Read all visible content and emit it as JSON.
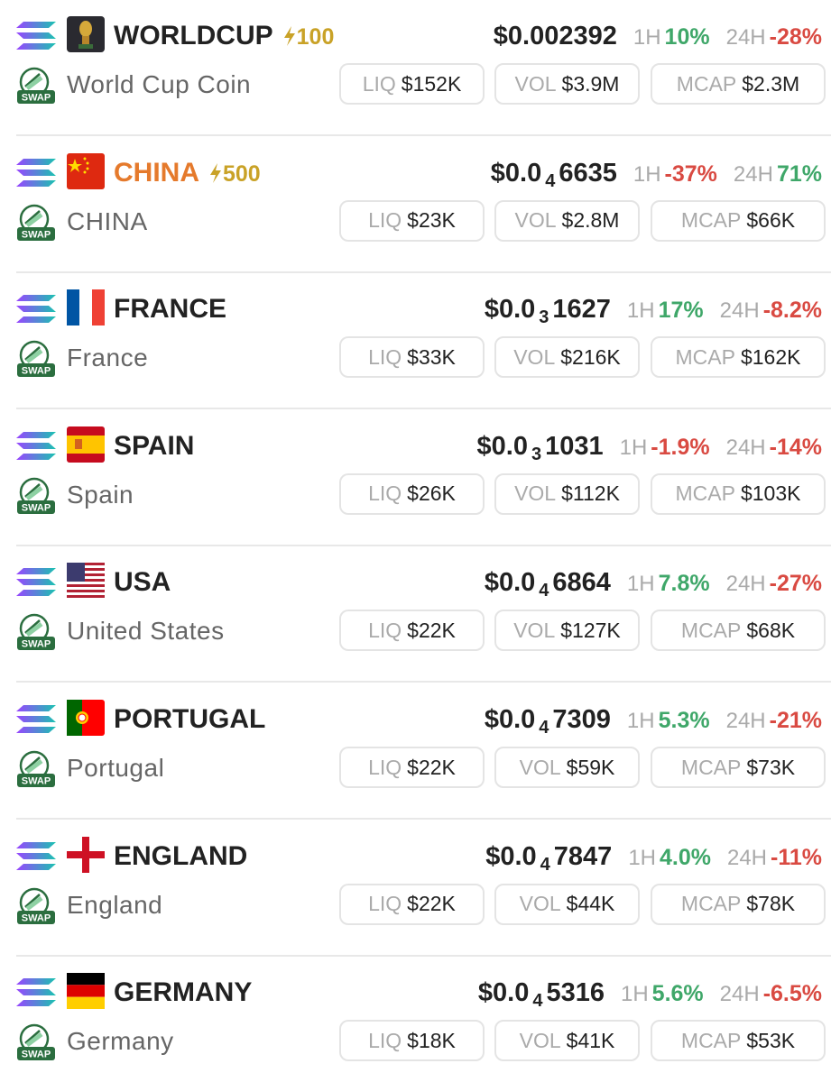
{
  "labels": {
    "h1": "1H",
    "h24": "24H",
    "liq": "LIQ",
    "vol": "VOL",
    "mcap": "MCAP",
    "swap": "SWAP"
  },
  "rows": [
    {
      "symbol": "WORLDCUP",
      "boost": "100",
      "name": "World Cup Coin",
      "price": {
        "main": "$0.002392"
      },
      "change_1h": "10%",
      "change_24h": "-28%",
      "liq": "$152K",
      "vol": "$3.9M",
      "mcap": "$2.3M"
    },
    {
      "symbol": "CHINA",
      "symbol_color": "#e57a2c",
      "boost": "500",
      "name": "CHINA",
      "price": {
        "main": "$0.0",
        "sub": "4",
        "tail": "6635"
      },
      "change_1h": "-37%",
      "change_24h": "71%",
      "liq": "$23K",
      "vol": "$2.8M",
      "mcap": "$66K"
    },
    {
      "symbol": "FRANCE",
      "name": "France",
      "price": {
        "main": "$0.0",
        "sub": "3",
        "tail": "1627"
      },
      "change_1h": "17%",
      "change_24h": "-8.2%",
      "liq": "$33K",
      "vol": "$216K",
      "mcap": "$162K"
    },
    {
      "symbol": "SPAIN",
      "name": "Spain",
      "price": {
        "main": "$0.0",
        "sub": "3",
        "tail": "1031"
      },
      "change_1h": "-1.9%",
      "change_24h": "-14%",
      "liq": "$26K",
      "vol": "$112K",
      "mcap": "$103K"
    },
    {
      "symbol": "USA",
      "name": "United States",
      "price": {
        "main": "$0.0",
        "sub": "4",
        "tail": "6864"
      },
      "change_1h": "7.8%",
      "change_24h": "-27%",
      "liq": "$22K",
      "vol": "$127K",
      "mcap": "$68K"
    },
    {
      "symbol": "PORTUGAL",
      "name": "Portugal",
      "price": {
        "main": "$0.0",
        "sub": "4",
        "tail": "7309"
      },
      "change_1h": "5.3%",
      "change_24h": "-21%",
      "liq": "$22K",
      "vol": "$59K",
      "mcap": "$73K"
    },
    {
      "symbol": "ENGLAND",
      "name": "England",
      "price": {
        "main": "$0.0",
        "sub": "4",
        "tail": "7847"
      },
      "change_1h": "4.0%",
      "change_24h": "-11%",
      "liq": "$22K",
      "vol": "$44K",
      "mcap": "$78K"
    },
    {
      "symbol": "GERMANY",
      "name": "Germany",
      "price": {
        "main": "$0.0",
        "sub": "4",
        "tail": "5316"
      },
      "change_1h": "5.6%",
      "change_24h": "-6.5%",
      "liq": "$18K",
      "vol": "$41K",
      "mcap": "$53K"
    }
  ]
}
